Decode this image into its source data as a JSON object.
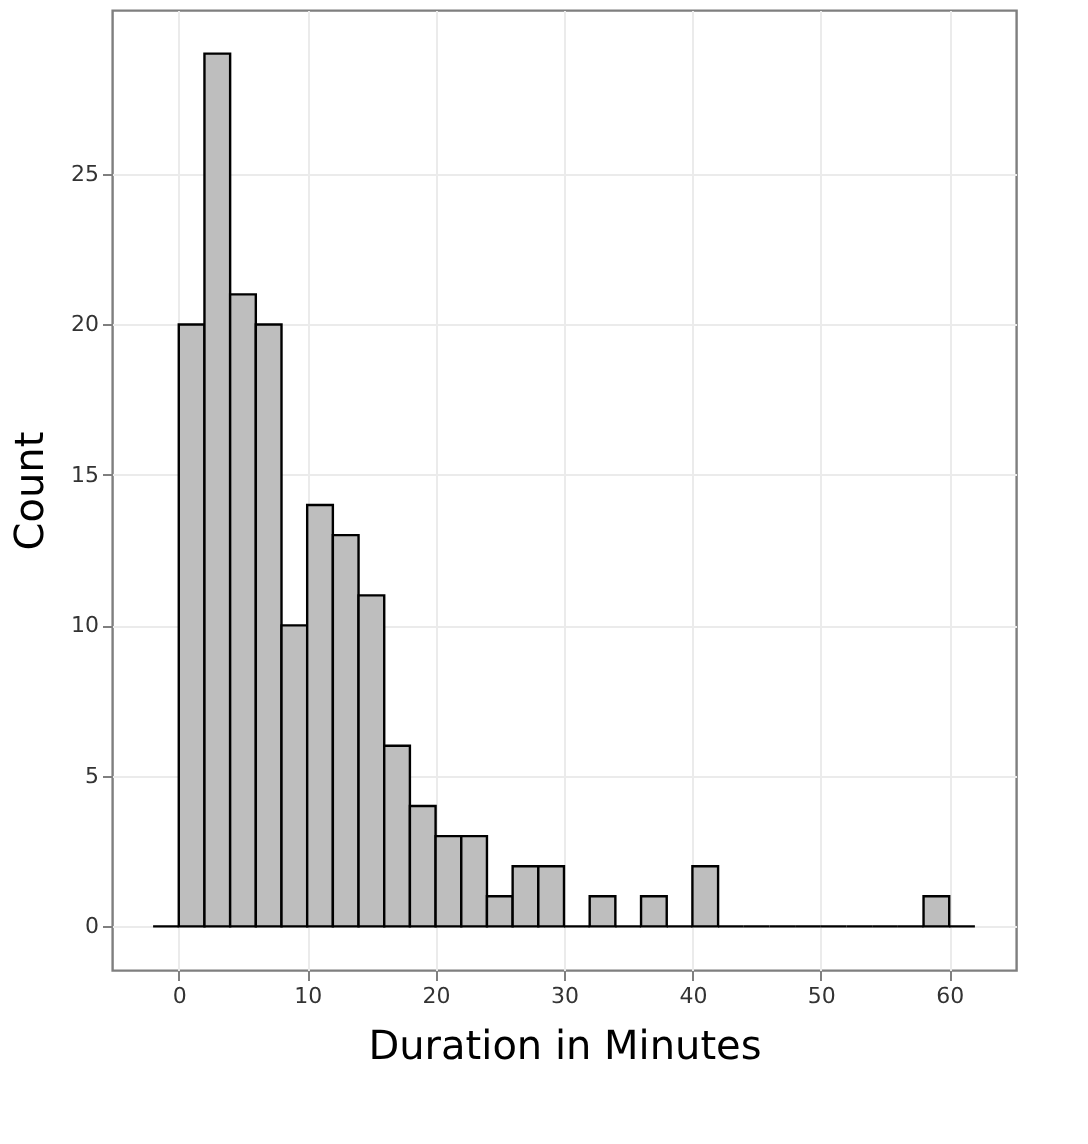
{
  "chart_data": {
    "type": "histogram",
    "xlabel": "Duration in Minutes",
    "ylabel": "Count",
    "bins": [
      -2,
      0,
      2,
      4,
      6,
      8,
      10,
      12,
      14,
      16,
      18,
      20,
      22,
      24,
      26,
      28,
      30,
      32,
      34,
      36,
      38,
      40,
      42,
      44,
      46,
      48,
      50,
      52,
      54,
      56,
      58,
      60,
      62
    ],
    "values": [
      0,
      20,
      29,
      21,
      20,
      10,
      14,
      13,
      11,
      6,
      4,
      3,
      3,
      1,
      2,
      2,
      0,
      1,
      0,
      1,
      0,
      2,
      0,
      0,
      0,
      0,
      0,
      0,
      0,
      0,
      1,
      0
    ],
    "colors": [
      "#000000",
      "#bebebe",
      "#bebebe",
      "#bebebe",
      "#bebebe",
      "#bebebe",
      "#bebebe",
      "#bebebe",
      "#bebebe",
      "#bebebe",
      "#bebebe",
      "#bebebe",
      "#bebebe",
      "#bebebe",
      "#bebebe",
      "#bebebe",
      "#000000",
      "#bebebe",
      "#000000",
      "#bebebe",
      "#000000",
      "#bebebe",
      "#000000",
      "#000000",
      "#000000",
      "#000000",
      "#000000",
      "#000000",
      "#000000",
      "#000000",
      "#bebebe",
      "#000000"
    ],
    "xlim": [
      -5.2,
      65.2
    ],
    "xticks": [
      0,
      10,
      20,
      30,
      40,
      50,
      60
    ],
    "ylim": [
      -1.45,
      30.45
    ],
    "yticks": [
      0,
      5,
      10,
      15,
      20,
      25
    ],
    "grid": true
  }
}
